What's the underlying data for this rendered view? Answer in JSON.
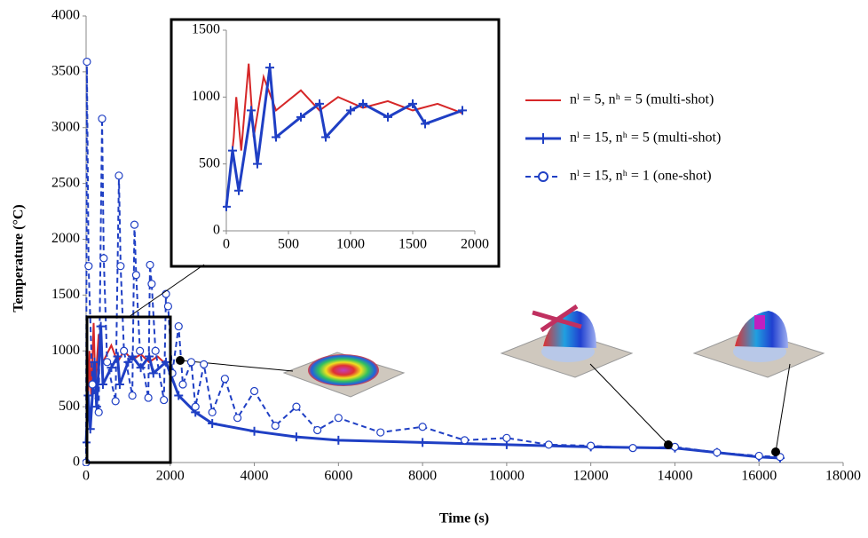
{
  "chart_data": [
    {
      "type": "line",
      "x_label": "Time (s)",
      "y_label": "Temperature (°C)",
      "xlim": [
        0,
        18000
      ],
      "xticks": [
        0,
        2000,
        4000,
        6000,
        8000,
        10000,
        12000,
        14000,
        16000,
        18000
      ],
      "ylim": [
        0,
        4000
      ],
      "yticks": [
        0,
        500,
        1000,
        1500,
        2000,
        2500,
        3000,
        3500,
        4000
      ],
      "grid": false,
      "legend": "right",
      "series": [
        {
          "name": "nˡ = 5, nʰ = 5 (multi-shot)",
          "color": "#d62728",
          "dashed": false,
          "marker": "none",
          "x": [
            0,
            60,
            80,
            120,
            180,
            220,
            300,
            400,
            600,
            750,
            900,
            1100,
            1300,
            1500,
            1700,
            1900
          ],
          "values": [
            180,
            700,
            1000,
            600,
            1250,
            700,
            1150,
            900,
            1050,
            900,
            1000,
            920,
            970,
            900,
            950,
            880
          ]
        },
        {
          "name": "nˡ = 15, nʰ = 5 (multi-shot)",
          "color": "#1f3fc4",
          "dashed": false,
          "marker": "plus",
          "x": [
            0,
            50,
            100,
            200,
            250,
            350,
            400,
            600,
            750,
            800,
            1000,
            1100,
            1300,
            1500,
            1600,
            1900,
            2200,
            2600,
            3000,
            4000,
            5000,
            6000,
            8000,
            10000,
            12000,
            14000,
            15000,
            16000,
            16500
          ],
          "values": [
            180,
            600,
            300,
            900,
            500,
            1220,
            700,
            850,
            950,
            700,
            900,
            950,
            850,
            950,
            800,
            900,
            600,
            450,
            350,
            280,
            230,
            200,
            180,
            160,
            140,
            130,
            90,
            50,
            40
          ]
        },
        {
          "name": "nˡ = 15, nʰ = 1 (one-shot)",
          "color": "#1f3fc4",
          "dashed": true,
          "marker": "circle",
          "x": [
            0,
            20,
            60,
            150,
            300,
            380,
            420,
            500,
            700,
            780,
            820,
            900,
            1100,
            1150,
            1190,
            1280,
            1480,
            1520,
            1560,
            1650,
            1850,
            1900,
            1950,
            2050,
            2200,
            2300,
            2500,
            2600,
            2800,
            3000,
            3300,
            3600,
            4000,
            4500,
            5000,
            5500,
            6000,
            7000,
            8000,
            9000,
            10000,
            11000,
            12000,
            13000,
            14000,
            15000,
            16000,
            16500
          ],
          "values": [
            0,
            3590,
            1760,
            700,
            450,
            3080,
            1830,
            900,
            550,
            2570,
            1760,
            1000,
            600,
            2130,
            1680,
            1000,
            580,
            1770,
            1600,
            1000,
            560,
            1510,
            1400,
            800,
            1220,
            700,
            900,
            500,
            880,
            450,
            750,
            400,
            640,
            330,
            500,
            290,
            400,
            270,
            320,
            200,
            220,
            160,
            150,
            130,
            140,
            90,
            60,
            50
          ]
        }
      ]
    },
    {
      "type": "line",
      "xlim": [
        0,
        2000
      ],
      "xticks": [
        0,
        500,
        1000,
        1500,
        2000
      ],
      "ylim": [
        0,
        1500
      ],
      "yticks": [
        0,
        500,
        1000,
        1500
      ],
      "series": [
        {
          "color": "#d62728",
          "dashed": false,
          "marker": "none",
          "x": [
            0,
            60,
            80,
            120,
            180,
            220,
            300,
            400,
            600,
            750,
            900,
            1100,
            1300,
            1500,
            1700,
            1900
          ],
          "values": [
            180,
            700,
            1000,
            600,
            1250,
            700,
            1150,
            900,
            1050,
            900,
            1000,
            920,
            970,
            900,
            950,
            880
          ]
        },
        {
          "color": "#1f3fc4",
          "dashed": false,
          "marker": "plus",
          "x": [
            0,
            50,
            100,
            200,
            250,
            350,
            400,
            600,
            750,
            800,
            1000,
            1100,
            1300,
            1500,
            1600,
            1900
          ],
          "values": [
            180,
            600,
            300,
            900,
            500,
            1220,
            700,
            850,
            950,
            700,
            900,
            950,
            850,
            950,
            800,
            900
          ]
        }
      ]
    }
  ]
}
